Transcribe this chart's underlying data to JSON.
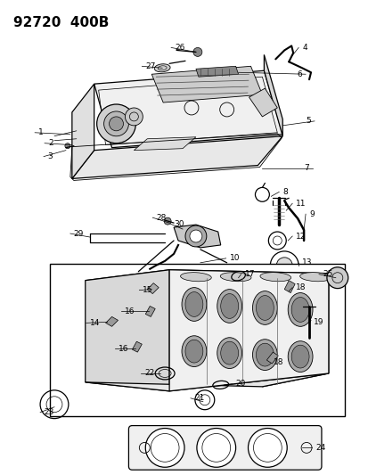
{
  "title": "92720  400B",
  "bg_color": "#ffffff",
  "title_fontsize": 11,
  "title_weight": "bold",
  "figsize": [
    4.14,
    5.33
  ],
  "dpi": 100,
  "label_fontsize": 6.5,
  "lw": 0.9
}
